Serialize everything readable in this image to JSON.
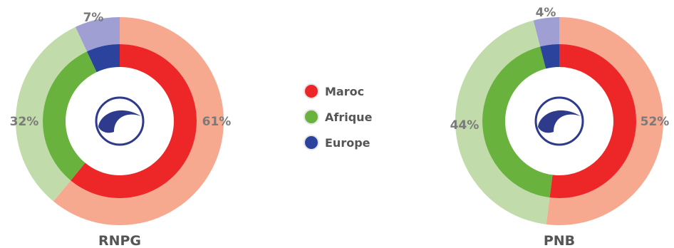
{
  "legend": [
    {
      "label": "Maroc",
      "color": "#ed2628",
      "light": "#f7a98f"
    },
    {
      "label": "Afrique",
      "color": "#6ab23e",
      "light": "#c1dcaa"
    },
    {
      "label": "Europe",
      "color": "#2b439c",
      "light": "#a09fd4"
    }
  ],
  "logo_color": "#2e3a8c",
  "chart_data": [
    {
      "type": "pie",
      "title": "RNPG",
      "categories": [
        "Maroc",
        "Afrique",
        "Europe"
      ],
      "values": [
        61,
        32,
        7
      ],
      "labels": [
        "61%",
        "32%",
        "7%"
      ]
    },
    {
      "type": "pie",
      "title": "PNB",
      "categories": [
        "Maroc",
        "Afrique",
        "Europe"
      ],
      "values": [
        52,
        44,
        4
      ],
      "labels": [
        "52%",
        "44%",
        "4%"
      ]
    }
  ]
}
